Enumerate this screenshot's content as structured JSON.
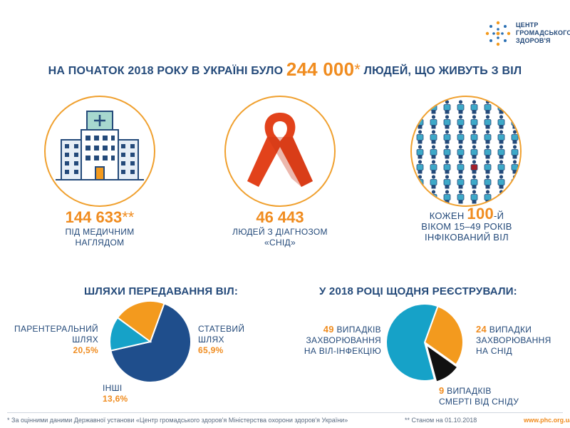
{
  "logo": {
    "line1": "ЦЕНТР",
    "line2": "ГРОМАДСЬКОГО",
    "line3": "ЗДОРОВ'Я"
  },
  "headline": {
    "before": "НА ПОЧАТОК 2018 РОКУ В УКРАЇНІ БУЛО ",
    "number": "244 000",
    "star": "*",
    "after": " ЛЮДЕЙ, ЩО ЖИВУТЬ З ВІЛ"
  },
  "stats": {
    "medical": {
      "number": "144 633",
      "star": "**",
      "line1": "ПІД МЕДИЧНИМ",
      "line2": "НАГЛЯДОМ"
    },
    "aids": {
      "number": "46 443",
      "line1": "ЛЮДЕЙ З ДІАГНОЗОМ",
      "line2": "«СНІД»"
    },
    "every": {
      "prefix": "КОЖЕН ",
      "number": "100",
      "suffix": "-Й",
      "line2": "ВІКОМ 15–49 РОКІВ",
      "line3": "ІНФІКОВАНИЙ ВІЛ"
    }
  },
  "sections": {
    "transmission": "ШЛЯХИ ПЕРЕДАВАННЯ ВІЛ:",
    "registered": "У 2018 РОЦІ ЩОДНЯ РЕЄСТРУВАЛИ:"
  },
  "transmission_labels": {
    "parenteral": {
      "line1": "ПАРЕНТЕРАЛЬНИЙ",
      "line2": "ШЛЯХ",
      "pct": "20,5%"
    },
    "sexual": {
      "line1": "СТАТЕВИЙ",
      "line2": "ШЛЯХ",
      "pct": "65,9%"
    },
    "other": {
      "line1": "ІНШІ",
      "pct": "13,6%"
    }
  },
  "registered_labels": {
    "hiv": {
      "n": "49",
      "line1": " ВИПАДКІВ",
      "line2": "ЗАХВОРЮВАННЯ",
      "line3": "НА ВІЛ-ІНФЕКЦІЮ"
    },
    "aids": {
      "n": "24",
      "line1": " ВИПАДКИ",
      "line2": "ЗАХВОРЮВАННЯ",
      "line3": "НА СНІД"
    },
    "death": {
      "n": "9",
      "line1": " ВИПАДКІВ",
      "line2": "СМЕРТІ ВІД СНІДУ"
    }
  },
  "chart_data": [
    {
      "type": "pie",
      "categories": [
        "СТАТЕВИЙ ШЛЯХ",
        "ІНШІ",
        "ПАРЕНТЕРАЛЬНИЙ ШЛЯХ"
      ],
      "values": [
        65.9,
        13.6,
        20.5
      ],
      "colors": [
        "#1f4e8c",
        "#16a2c8",
        "#f39a1e"
      ]
    },
    {
      "type": "pie",
      "categories": [
        "ЗАХВОРЮВАННЯ НА СНІД",
        "СМЕРТІ ВІД СНІДУ",
        "ЗАХВОРЮВАННЯ НА ВІЛ-ІНФЕКЦІЮ"
      ],
      "values": [
        24,
        9,
        49
      ],
      "colors": [
        "#f39a1e",
        "#111111",
        "#16a2c8"
      ]
    }
  ],
  "people_grid": {
    "rows": 7,
    "cols": 8,
    "highlight_color": "#a3202a",
    "person_color": "#3ea9c8"
  },
  "footer": {
    "note1": "* За оцінними даними Державної установи «Центр громадського здоров'я Міністерства охорони здоров'я України»",
    "note2": "** Станом на 01.10.2018",
    "site": "www.phc.org.ua"
  },
  "colors": {
    "navy": "#244a7a",
    "orange": "#f08c1f",
    "ribbon": "#e2421b"
  }
}
